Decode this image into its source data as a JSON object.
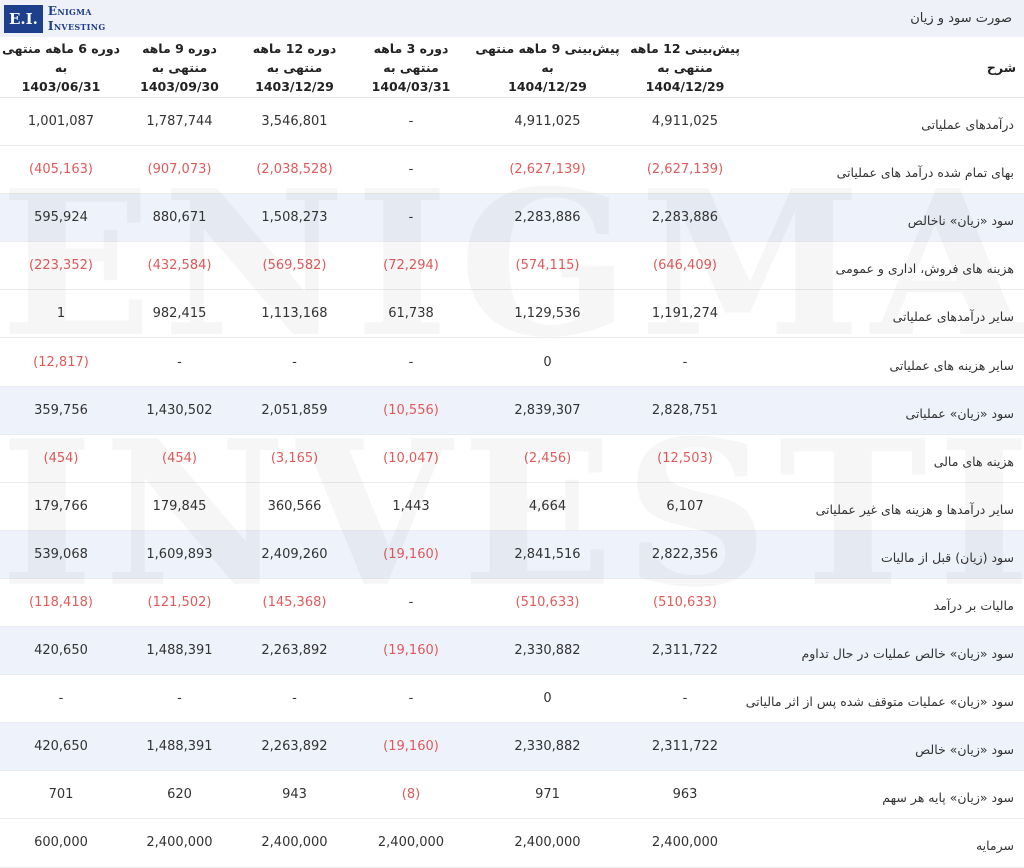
{
  "logo": {
    "mark": "E.I.",
    "line1": "Enigma",
    "line2": "Investing"
  },
  "title": "صورت سود و زیان",
  "table": {
    "label_header": "شرح",
    "columns": [
      {
        "title": "پیش‌بینی 12 ماهه منتهی به",
        "date": "1404/12/29"
      },
      {
        "title": "پیش‌بینی 9 ماهه منتهی به",
        "date": "1404/12/29"
      },
      {
        "title": "دوره 3 ماهه منتهی به",
        "date": "1404/03/31"
      },
      {
        "title": "دوره 12 ماهه منتهی به",
        "date": "1403/12/29"
      },
      {
        "title": "دوره 9 ماهه منتهی به",
        "date": "1403/09/30"
      },
      {
        "title": "دوره 6 ماهه منتهی به",
        "date": "1403/06/31"
      }
    ],
    "rows": [
      {
        "label": "درآمدهای عملیاتی",
        "values": [
          "4,911,025",
          "4,911,025",
          "-",
          "3,546,801",
          "1,787,744",
          "1,001,087"
        ],
        "highlight": false
      },
      {
        "label": "بهای تمام شده درآمد های عملیاتی",
        "values": [
          "(2,627,139)",
          "(2,627,139)",
          "-",
          "(2,038,528)",
          "(907,073)",
          "(405,163)"
        ],
        "highlight": false
      },
      {
        "label": "سود «زیان» ناخالص",
        "values": [
          "2,283,886",
          "2,283,886",
          "-",
          "1,508,273",
          "880,671",
          "595,924"
        ],
        "highlight": true
      },
      {
        "label": "هزینه های فروش، اداری و عمومی",
        "values": [
          "(646,409)",
          "(574,115)",
          "(72,294)",
          "(569,582)",
          "(432,584)",
          "(223,352)"
        ],
        "highlight": false
      },
      {
        "label": "سایر درآمدهای عملیاتی",
        "values": [
          "1,191,274",
          "1,129,536",
          "61,738",
          "1,113,168",
          "982,415",
          "1"
        ],
        "highlight": false
      },
      {
        "label": "سایر هزینه های عملیاتی",
        "values": [
          "-",
          "0",
          "-",
          "-",
          "-",
          "(12,817)"
        ],
        "highlight": false
      },
      {
        "label": "سود «زیان» عملیاتی",
        "values": [
          "2,828,751",
          "2,839,307",
          "(10,556)",
          "2,051,859",
          "1,430,502",
          "359,756"
        ],
        "highlight": true
      },
      {
        "label": "هزینه های مالی",
        "values": [
          "(12,503)",
          "(2,456)",
          "(10,047)",
          "(3,165)",
          "(454)",
          "(454)"
        ],
        "highlight": false
      },
      {
        "label": "سایر درآمدها و هزینه های غیر عملیاتی",
        "values": [
          "6,107",
          "4,664",
          "1,443",
          "360,566",
          "179,845",
          "179,766"
        ],
        "highlight": false
      },
      {
        "label": "سود (زیان) قبل از مالیات",
        "values": [
          "2,822,356",
          "2,841,516",
          "(19,160)",
          "2,409,260",
          "1,609,893",
          "539,068"
        ],
        "highlight": true
      },
      {
        "label": "مالیات بر درآمد",
        "values": [
          "(510,633)",
          "(510,633)",
          "-",
          "(145,368)",
          "(121,502)",
          "(118,418)"
        ],
        "highlight": false
      },
      {
        "label": "سود «زیان» خالص عملیات در حال تداوم",
        "values": [
          "2,311,722",
          "2,330,882",
          "(19,160)",
          "2,263,892",
          "1,488,391",
          "420,650"
        ],
        "highlight": true
      },
      {
        "label": "سود «زیان» عملیات متوقف شده پس از اثر مالیاتی",
        "values": [
          "-",
          "0",
          "-",
          "-",
          "-",
          "-"
        ],
        "highlight": false
      },
      {
        "label": "سود «زیان» خالص",
        "values": [
          "2,311,722",
          "2,330,882",
          "(19,160)",
          "2,263,892",
          "1,488,391",
          "420,650"
        ],
        "highlight": true
      },
      {
        "label": "سود «زیان» پایه هر سهم",
        "values": [
          "963",
          "971",
          "(8)",
          "943",
          "620",
          "701"
        ],
        "highlight": false
      },
      {
        "label": "سرمایه",
        "values": [
          "2,400,000",
          "2,400,000",
          "2,400,000",
          "2,400,000",
          "2,400,000",
          "600,000"
        ],
        "highlight": false
      }
    ]
  }
}
